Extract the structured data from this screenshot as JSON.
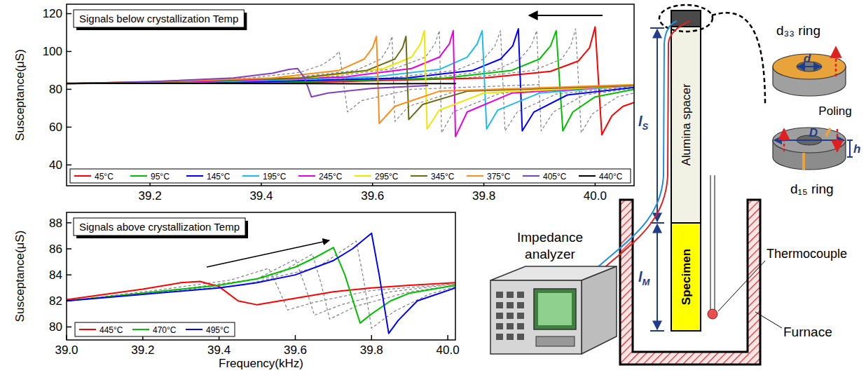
{
  "chart_data": [
    {
      "type": "line",
      "title": "Signals below crystallization Temp",
      "ylabel": "Susceptance(μS)",
      "xlim": [
        39.05,
        40.07
      ],
      "ylim": [
        29,
        125
      ],
      "xticks": [
        39.2,
        39.4,
        39.6,
        39.8,
        {
          "value": 40,
          "label": "40.0"
        }
      ],
      "yticks": [
        40,
        60,
        80,
        100,
        120
      ],
      "grid": false,
      "legend": "bottom",
      "series": [
        {
          "name": "45°C",
          "color": "#ff0000",
          "x": [
            39.05,
            39.5,
            39.8,
            39.92,
            39.97,
            39.99,
            40.0,
            40.012,
            40.03,
            40.05,
            40.07
          ],
          "values": [
            83,
            83.8,
            86,
            89.5,
            95,
            102,
            113,
            56,
            66,
            71,
            73
          ]
        },
        {
          "name": "95°C",
          "color": "#00c000",
          "x": [
            39.05,
            39.45,
            39.73,
            39.85,
            39.9,
            39.92,
            39.93,
            39.942,
            39.96,
            40.0,
            40.07
          ],
          "values": [
            83,
            84,
            86,
            90,
            96,
            103,
            111,
            58,
            68,
            76,
            80
          ]
        },
        {
          "name": "145°C",
          "color": "#0000ff",
          "x": [
            39.05,
            39.4,
            39.66,
            39.78,
            39.83,
            39.852,
            39.862,
            39.869,
            39.89,
            39.95,
            40.07
          ],
          "values": [
            83,
            84,
            86,
            90,
            96,
            103,
            112,
            58,
            68,
            77,
            81
          ]
        },
        {
          "name": "195°C",
          "color": "#1ebce8",
          "x": [
            39.05,
            39.35,
            39.6,
            39.72,
            39.77,
            39.788,
            39.797,
            39.805,
            39.825,
            39.9,
            40.07
          ],
          "values": [
            83,
            84.2,
            86.5,
            90.5,
            97,
            104,
            111,
            59,
            69,
            78,
            82
          ]
        },
        {
          "name": "245°C",
          "color": "#e600e6",
          "x": [
            39.05,
            39.3,
            39.55,
            39.67,
            39.72,
            39.738,
            39.745,
            39.749,
            39.77,
            39.85,
            40.07
          ],
          "values": [
            83,
            84.2,
            86.5,
            91,
            97,
            104,
            111,
            55,
            68,
            78,
            82
          ]
        },
        {
          "name": "295°C",
          "color": "#f2e500",
          "x": [
            39.05,
            39.25,
            39.5,
            39.62,
            39.67,
            39.686,
            39.693,
            39.698,
            39.72,
            39.8,
            40.07
          ],
          "values": [
            83,
            84.3,
            86.5,
            91,
            97,
            104,
            111,
            59,
            69,
            78,
            82
          ]
        },
        {
          "name": "345°C",
          "color": "#6b6b14",
          "x": [
            39.05,
            39.25,
            39.47,
            39.59,
            39.64,
            39.654,
            39.66,
            39.665,
            39.69,
            39.77,
            40.07
          ],
          "values": [
            83,
            84.2,
            86,
            90,
            96,
            102,
            108,
            64,
            72,
            79,
            82
          ]
        },
        {
          "name": "375°C",
          "color": "#ff8c1a",
          "x": [
            39.05,
            39.2,
            39.42,
            39.54,
            39.585,
            39.6,
            39.607,
            39.612,
            39.64,
            39.72,
            40.07
          ],
          "values": [
            83,
            84,
            86,
            90,
            96,
            102,
            108,
            62,
            71,
            79,
            82.5
          ]
        },
        {
          "name": "405°C",
          "color": "#8040c0",
          "x": [
            39.05,
            39.2,
            39.35,
            39.42,
            39.45,
            39.465,
            39.478,
            39.49,
            39.52,
            39.6,
            39.7
          ],
          "values": [
            83,
            84,
            86,
            88.5,
            90.5,
            91,
            86,
            76,
            78,
            80.5,
            82
          ]
        },
        {
          "name": "440°C",
          "color": "#000000",
          "x": [
            39.05,
            39.3,
            39.5,
            39.6,
            39.7,
            39.75
          ],
          "values": [
            83.2,
            83.1,
            83,
            82.9,
            83,
            83
          ]
        },
        {
          "color": "#808080",
          "line_style": "dashed",
          "x": [
            39.05,
            39.47,
            39.77,
            39.89,
            39.94,
            39.956,
            39.965,
            39.975,
            39.995,
            40.04,
            40.07
          ],
          "values": [
            83,
            84,
            86,
            90,
            96,
            103,
            112,
            57,
            67,
            76,
            78
          ]
        },
        {
          "color": "#808080",
          "line_style": "dashed",
          "x": [
            39.05,
            39.43,
            39.7,
            39.82,
            39.865,
            39.885,
            39.895,
            39.903,
            39.925,
            39.98,
            40.07
          ],
          "values": [
            83,
            84,
            86,
            90,
            96,
            103,
            111,
            58,
            68,
            77,
            80.5
          ]
        },
        {
          "color": "#808080",
          "line_style": "dashed",
          "x": [
            39.05,
            39.37,
            39.63,
            39.75,
            39.8,
            39.82,
            39.83,
            39.838,
            39.86,
            39.93,
            40.07
          ],
          "values": [
            83,
            84,
            86,
            90,
            96,
            103,
            111,
            58,
            68,
            77.5,
            81.5
          ]
        },
        {
          "color": "#808080",
          "line_style": "dashed",
          "x": [
            39.05,
            39.28,
            39.52,
            39.64,
            39.695,
            39.712,
            39.72,
            39.724,
            39.745,
            39.83,
            40.07
          ],
          "values": [
            83,
            84.2,
            86.5,
            91,
            97,
            104,
            111,
            57,
            68,
            78,
            82
          ]
        },
        {
          "color": "#808080",
          "line_style": "dashed",
          "x": [
            39.05,
            39.22,
            39.45,
            39.57,
            39.615,
            39.628,
            39.635,
            39.64,
            39.665,
            39.75,
            40.07
          ],
          "values": [
            83,
            84.1,
            86,
            90,
            96,
            102,
            108,
            63,
            71,
            79,
            82.2
          ]
        },
        {
          "color": "#808080",
          "line_style": "dashed",
          "x": [
            39.05,
            39.2,
            39.38,
            39.47,
            39.51,
            39.53,
            39.54,
            39.555,
            39.58,
            39.67,
            39.9
          ],
          "values": [
            83,
            84,
            86,
            89,
            93,
            97,
            100,
            68,
            74,
            80,
            82.5
          ]
        }
      ]
    },
    {
      "type": "line",
      "title": "Signals above crystallization Temp",
      "xlabel": "Frequency(kHz)",
      "ylabel": "Susceptance(μS)",
      "xlim": [
        39.0,
        40.02
      ],
      "ylim": [
        79,
        88.8
      ],
      "xticks": [
        {
          "value": 39,
          "label": "39.0"
        },
        39.2,
        39.4,
        39.6,
        39.8,
        {
          "value": 40,
          "label": "40.0"
        }
      ],
      "yticks": [
        80,
        82,
        84,
        86,
        88
      ],
      "grid": false,
      "legend": "lower left",
      "series": [
        {
          "name": "445°C",
          "color": "#ff0000",
          "x": [
            39.0,
            39.1,
            39.2,
            39.3,
            39.35,
            39.4,
            39.45,
            39.5,
            39.6,
            39.7,
            39.8,
            39.9,
            40.02
          ],
          "values": [
            82.1,
            82.5,
            82.9,
            83.4,
            83.5,
            83.1,
            82.0,
            81.7,
            82.2,
            82.7,
            83.0,
            83.2,
            83.4
          ]
        },
        {
          "name": "470°C",
          "color": "#00c000",
          "x": [
            39.0,
            39.2,
            39.4,
            39.5,
            39.6,
            39.65,
            39.7,
            39.73,
            39.77,
            39.8,
            39.85,
            39.9,
            40.02
          ],
          "values": [
            82.0,
            82.6,
            83.2,
            83.7,
            84.6,
            85.3,
            86.1,
            84,
            80.3,
            81.0,
            82.0,
            82.6,
            83.2
          ]
        },
        {
          "name": "495°C",
          "color": "#0000ff",
          "x": [
            39.0,
            39.2,
            39.4,
            39.5,
            39.6,
            39.7,
            39.75,
            39.8,
            39.82,
            39.845,
            39.87,
            39.92,
            40.02
          ],
          "values": [
            82.0,
            82.5,
            83.0,
            83.4,
            84.0,
            85.1,
            86.0,
            87.2,
            84,
            79.5,
            80.5,
            82,
            83.0
          ]
        },
        {
          "color": "#808080",
          "line_style": "dashed",
          "x": [
            39.0,
            39.23,
            39.43,
            39.53,
            39.555,
            39.58,
            39.65,
            39.8,
            40.02
          ],
          "values": [
            82.0,
            82.8,
            83.6,
            84.5,
            83.0,
            81.3,
            81.9,
            82.8,
            83.3
          ]
        },
        {
          "color": "#808080",
          "line_style": "dashed",
          "x": [
            39.0,
            39.3,
            39.5,
            39.6,
            39.625,
            39.65,
            39.72,
            39.85,
            40.02
          ],
          "values": [
            82.0,
            82.9,
            83.7,
            85.2,
            83.2,
            80.9,
            81.7,
            82.7,
            83.3
          ]
        },
        {
          "color": "#808080",
          "line_style": "dashed",
          "x": [
            39.0,
            39.35,
            39.545,
            39.645,
            39.668,
            39.69,
            39.76,
            39.9,
            40.02
          ],
          "values": [
            82.0,
            83.0,
            83.9,
            85.6,
            83.3,
            80.6,
            81.6,
            82.7,
            83.2
          ]
        },
        {
          "color": "#808080",
          "line_style": "dashed",
          "x": [
            39.0,
            39.46,
            39.66,
            39.76,
            39.78,
            39.8,
            39.86,
            39.95,
            40.02
          ],
          "values": [
            82.0,
            83.2,
            84.6,
            86.6,
            83.5,
            79.9,
            81.2,
            82.5,
            83.1
          ]
        }
      ]
    }
  ],
  "diagram": {
    "d33_ring": "d₃₃ ring",
    "d15_ring": "d₁₅ ring",
    "poling": "Poling",
    "inner_diameter": "d",
    "outer_diameter": "D",
    "height": "h",
    "spacer": "Alumina spacer",
    "specimen": "Specimen",
    "spacer_length": {
      "main": "l",
      "sub": "S"
    },
    "specimen_length": {
      "main": "l",
      "sub": "M"
    },
    "thermocouple": "Thermocouple",
    "furnace": "Furnace",
    "analyzer": "Impedance analyzer"
  }
}
